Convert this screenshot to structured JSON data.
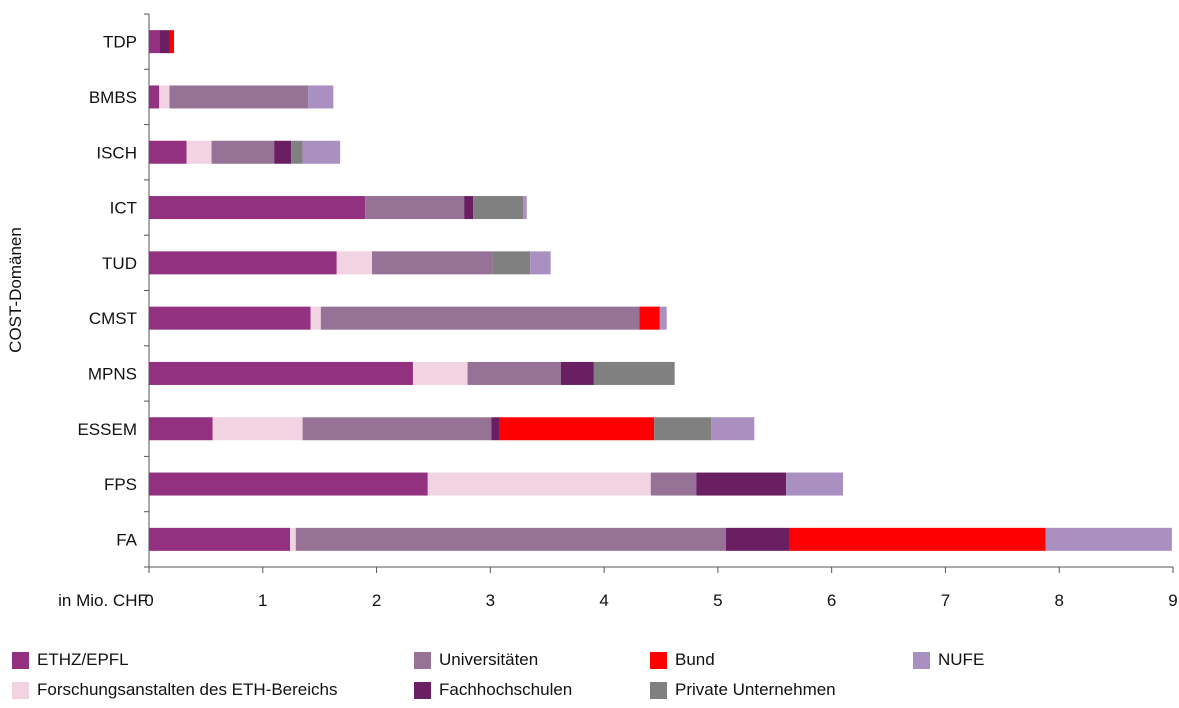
{
  "chart_data": {
    "type": "bar",
    "orientation": "horizontal",
    "stacked": true,
    "title": "",
    "ylabel": "COST-Domänen",
    "xlabel": "in Mio. CHF",
    "xlim": [
      0,
      9
    ],
    "xticks": [
      "0",
      "1",
      "2",
      "3",
      "4",
      "5",
      "6",
      "7",
      "8",
      "9"
    ],
    "grid": false,
    "legend_position": "bottom",
    "categories": [
      "TDP",
      "BMBS",
      "ISCH",
      "ICT",
      "TUD",
      "CMST",
      "MPNS",
      "ESSEM",
      "FPS",
      "FA"
    ],
    "series": [
      {
        "name": "ETHZ/EPFL",
        "color": "#93307f",
        "values": [
          0.09,
          0.09,
          0.33,
          1.9,
          1.65,
          1.42,
          2.32,
          0.56,
          2.45,
          1.24
        ]
      },
      {
        "name": "Forschungsanstalten des ETH-Bereichs",
        "color": "#f2d3e2",
        "values": [
          0.0,
          0.09,
          0.22,
          0.0,
          0.31,
          0.09,
          0.48,
          0.79,
          1.96,
          0.05
        ]
      },
      {
        "name": "Universitäten",
        "color": "#977297",
        "values": [
          0.0,
          1.22,
          0.55,
          0.87,
          1.06,
          2.8,
          0.82,
          1.66,
          0.4,
          3.78
        ]
      },
      {
        "name": "Fachhochschulen",
        "color": "#6a1f62",
        "values": [
          0.09,
          0.0,
          0.15,
          0.08,
          0.0,
          0.0,
          0.29,
          0.07,
          0.79,
          0.56
        ]
      },
      {
        "name": "Bund",
        "color": "#ff0000",
        "values": [
          0.04,
          0.0,
          0.0,
          0.0,
          0.0,
          0.18,
          0.0,
          1.36,
          0.0,
          2.25
        ]
      },
      {
        "name": "Private Unternehmen",
        "color": "#808080",
        "values": [
          0.0,
          0.0,
          0.1,
          0.44,
          0.33,
          0.0,
          0.71,
          0.5,
          0.0,
          0.0
        ]
      },
      {
        "name": "NUFE",
        "color": "#a990c0",
        "values": [
          0.0,
          0.22,
          0.33,
          0.03,
          0.18,
          0.06,
          0.0,
          0.38,
          0.5,
          1.11
        ]
      }
    ]
  }
}
